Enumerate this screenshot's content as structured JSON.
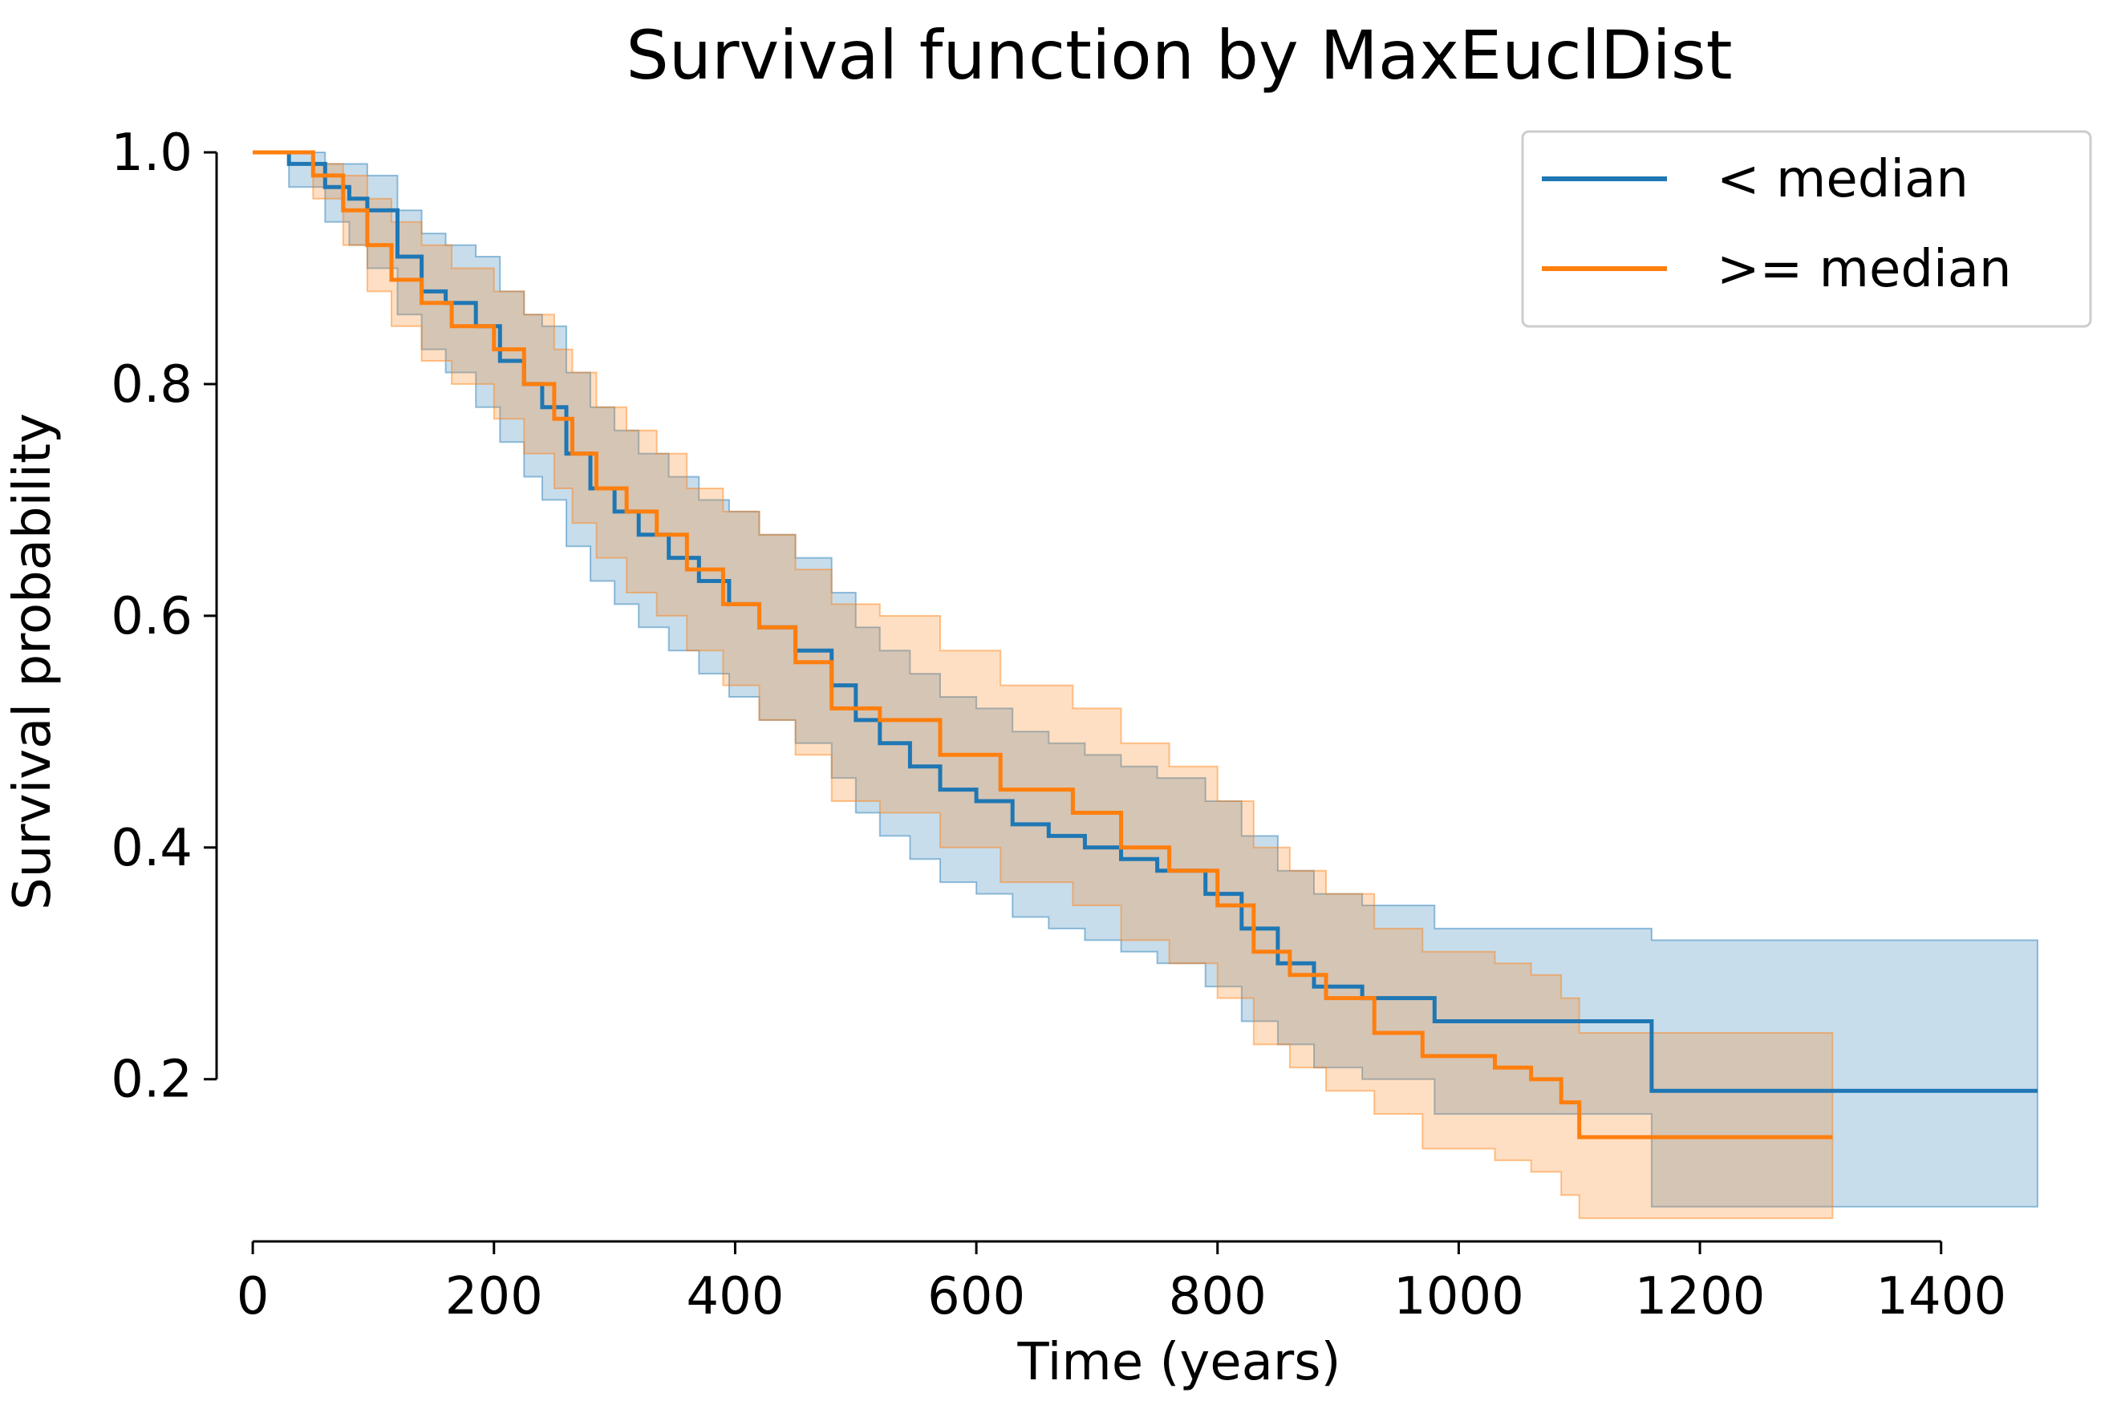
{
  "chart_data": {
    "type": "line",
    "subtype": "step",
    "title": "Survival function by MaxEuclDist",
    "xlabel": "Time (years)",
    "ylabel": "Survival probability",
    "xlim": [
      -30,
      1480
    ],
    "ylim": [
      0.06,
      1.0
    ],
    "xticks": [
      0,
      200,
      400,
      600,
      800,
      1000,
      1200,
      1400
    ],
    "yticks": [
      0.2,
      0.4,
      0.6,
      0.8,
      1.0
    ],
    "xtick_labels": [
      "0",
      "200",
      "400",
      "600",
      "800",
      "1000",
      "1200",
      "1400"
    ],
    "ytick_labels": [
      "0.2",
      "0.4",
      "0.6",
      "0.8",
      "1.0"
    ],
    "grid": false,
    "legend_position": "top-right",
    "series": [
      {
        "name": "< median",
        "color": "#1f77b4",
        "x": [
          0,
          30,
          60,
          80,
          95,
          120,
          140,
          160,
          185,
          205,
          225,
          240,
          260,
          280,
          300,
          320,
          345,
          370,
          395,
          420,
          450,
          480,
          500,
          520,
          545,
          570,
          600,
          630,
          660,
          690,
          720,
          750,
          790,
          820,
          850,
          880,
          920,
          980,
          1040,
          1160,
          1480
        ],
        "y": [
          1.0,
          0.99,
          0.97,
          0.96,
          0.95,
          0.91,
          0.88,
          0.87,
          0.85,
          0.82,
          0.8,
          0.78,
          0.74,
          0.71,
          0.69,
          0.67,
          0.65,
          0.63,
          0.61,
          0.59,
          0.57,
          0.54,
          0.51,
          0.49,
          0.47,
          0.45,
          0.44,
          0.42,
          0.41,
          0.4,
          0.39,
          0.38,
          0.36,
          0.33,
          0.3,
          0.28,
          0.27,
          0.25,
          0.25,
          0.19,
          0.19
        ],
        "ci_lower": [
          1.0,
          0.97,
          0.94,
          0.92,
          0.9,
          0.86,
          0.83,
          0.81,
          0.78,
          0.75,
          0.72,
          0.7,
          0.66,
          0.63,
          0.61,
          0.59,
          0.57,
          0.55,
          0.53,
          0.51,
          0.49,
          0.46,
          0.43,
          0.41,
          0.39,
          0.37,
          0.36,
          0.34,
          0.33,
          0.32,
          0.31,
          0.3,
          0.28,
          0.25,
          0.23,
          0.21,
          0.2,
          0.17,
          0.17,
          0.09,
          0.09
        ],
        "ci_upper": [
          1.0,
          1.0,
          0.99,
          0.99,
          0.98,
          0.95,
          0.93,
          0.92,
          0.91,
          0.88,
          0.86,
          0.85,
          0.81,
          0.78,
          0.76,
          0.74,
          0.72,
          0.7,
          0.69,
          0.67,
          0.65,
          0.62,
          0.59,
          0.57,
          0.55,
          0.53,
          0.52,
          0.5,
          0.49,
          0.48,
          0.47,
          0.46,
          0.44,
          0.41,
          0.38,
          0.36,
          0.35,
          0.33,
          0.33,
          0.32,
          0.32
        ]
      },
      {
        "name": ">= median",
        "color": "#ff7f0e",
        "x": [
          0,
          50,
          75,
          95,
          115,
          140,
          165,
          200,
          225,
          250,
          265,
          285,
          310,
          335,
          360,
          390,
          420,
          450,
          480,
          500,
          520,
          570,
          620,
          680,
          720,
          760,
          800,
          830,
          860,
          890,
          930,
          970,
          1030,
          1060,
          1085,
          1100,
          1310
        ],
        "y": [
          1.0,
          0.98,
          0.95,
          0.92,
          0.89,
          0.87,
          0.85,
          0.83,
          0.8,
          0.77,
          0.74,
          0.71,
          0.69,
          0.67,
          0.64,
          0.61,
          0.59,
          0.56,
          0.52,
          0.52,
          0.51,
          0.48,
          0.45,
          0.43,
          0.4,
          0.38,
          0.35,
          0.31,
          0.29,
          0.27,
          0.24,
          0.22,
          0.21,
          0.2,
          0.18,
          0.15,
          0.15
        ],
        "ci_lower": [
          1.0,
          0.96,
          0.92,
          0.88,
          0.85,
          0.82,
          0.8,
          0.77,
          0.74,
          0.71,
          0.68,
          0.65,
          0.62,
          0.6,
          0.57,
          0.54,
          0.51,
          0.48,
          0.44,
          0.44,
          0.43,
          0.4,
          0.37,
          0.35,
          0.32,
          0.3,
          0.27,
          0.23,
          0.21,
          0.19,
          0.17,
          0.14,
          0.13,
          0.12,
          0.1,
          0.08,
          0.08
        ],
        "ci_upper": [
          1.0,
          0.99,
          0.98,
          0.96,
          0.94,
          0.92,
          0.9,
          0.88,
          0.86,
          0.83,
          0.81,
          0.78,
          0.76,
          0.74,
          0.71,
          0.69,
          0.67,
          0.64,
          0.61,
          0.61,
          0.6,
          0.57,
          0.54,
          0.52,
          0.49,
          0.47,
          0.44,
          0.4,
          0.38,
          0.36,
          0.33,
          0.31,
          0.3,
          0.29,
          0.27,
          0.24,
          0.24
        ]
      }
    ]
  }
}
